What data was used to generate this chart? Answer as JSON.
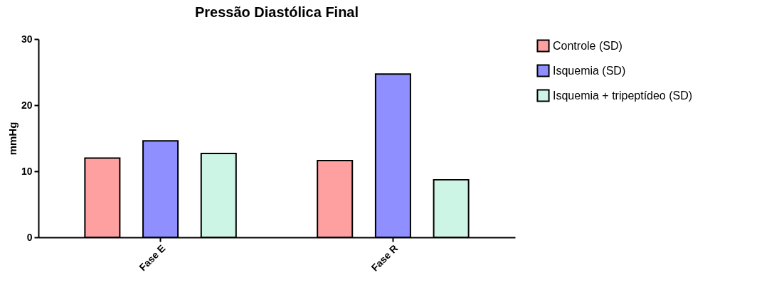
{
  "chart_data": {
    "type": "bar",
    "title": "Pressão Diastólica Final",
    "ylabel": "mmHg",
    "categories": [
      "Fase E",
      "Fase R"
    ],
    "series": [
      {
        "name": "Controle (SD)",
        "color": "#ffa0a0",
        "values": [
          12.0,
          11.6
        ]
      },
      {
        "name": "Isquemia (SD)",
        "color": "#8f8fff",
        "values": [
          14.6,
          24.7
        ]
      },
      {
        "name": "Isquemia + tripeptídeo (SD)",
        "color": "#ccf5e5",
        "values": [
          12.7,
          8.7
        ]
      }
    ],
    "ylim": [
      0,
      30
    ],
    "yticks": [
      0,
      10,
      20,
      30
    ],
    "grid": false,
    "legend": "right"
  }
}
